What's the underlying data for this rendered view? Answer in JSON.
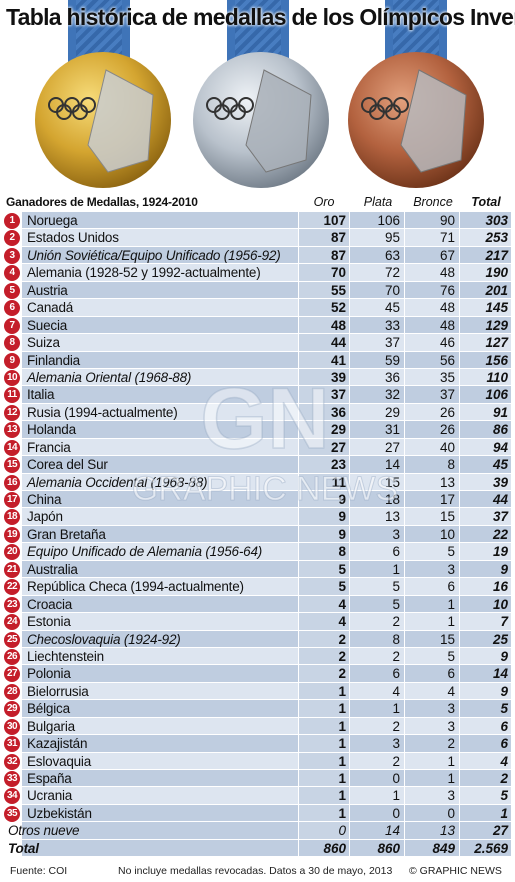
{
  "title": "Tabla histórica de medallas de los Olímpicos Invernales",
  "chart_data": {
    "type": "table",
    "header_label": "Ganadores de Medallas, 1924-2010",
    "columns": [
      "Oro",
      "Plata",
      "Bronce",
      "Total"
    ],
    "rows": [
      {
        "rank": "1",
        "country": "Noruega",
        "italic": false,
        "gold": "107",
        "silver": "106",
        "bronze": "90",
        "total": "303"
      },
      {
        "rank": "2",
        "country": "Estados Unidos",
        "italic": false,
        "gold": "87",
        "silver": "95",
        "bronze": "71",
        "total": "253"
      },
      {
        "rank": "3",
        "country": "Unión Soviética/Equipo Unificado (1956-92)",
        "italic": true,
        "gold": "87",
        "silver": "63",
        "bronze": "67",
        "total": "217"
      },
      {
        "rank": "4",
        "country": "Alemania (1928-52 y 1992-actualmente)",
        "italic": false,
        "gold": "70",
        "silver": "72",
        "bronze": "48",
        "total": "190"
      },
      {
        "rank": "5",
        "country": "Austria",
        "italic": false,
        "gold": "55",
        "silver": "70",
        "bronze": "76",
        "total": "201"
      },
      {
        "rank": "6",
        "country": "Canadá",
        "italic": false,
        "gold": "52",
        "silver": "45",
        "bronze": "48",
        "total": "145"
      },
      {
        "rank": "7",
        "country": "Suecia",
        "italic": false,
        "gold": "48",
        "silver": "33",
        "bronze": "48",
        "total": "129"
      },
      {
        "rank": "8",
        "country": "Suiza",
        "italic": false,
        "gold": "44",
        "silver": "37",
        "bronze": "46",
        "total": "127"
      },
      {
        "rank": "9",
        "country": "Finlandia",
        "italic": false,
        "gold": "41",
        "silver": "59",
        "bronze": "56",
        "total": "156"
      },
      {
        "rank": "10",
        "country": "Alemania Oriental (1968-88)",
        "italic": true,
        "gold": "39",
        "silver": "36",
        "bronze": "35",
        "total": "110"
      },
      {
        "rank": "11",
        "country": "Italia",
        "italic": false,
        "gold": "37",
        "silver": "32",
        "bronze": "37",
        "total": "106"
      },
      {
        "rank": "12",
        "country": "Rusia (1994-actualmente)",
        "italic": false,
        "gold": "36",
        "silver": "29",
        "bronze": "26",
        "total": "91"
      },
      {
        "rank": "13",
        "country": "Holanda",
        "italic": false,
        "gold": "29",
        "silver": "31",
        "bronze": "26",
        "total": "86"
      },
      {
        "rank": "14",
        "country": "Francia",
        "italic": false,
        "gold": "27",
        "silver": "27",
        "bronze": "40",
        "total": "94"
      },
      {
        "rank": "15",
        "country": "Corea del Sur",
        "italic": false,
        "gold": "23",
        "silver": "14",
        "bronze": "8",
        "total": "45"
      },
      {
        "rank": "16",
        "country": "Alemania Occidental (1968-88)",
        "italic": true,
        "gold": "11",
        "silver": "15",
        "bronze": "13",
        "total": "39"
      },
      {
        "rank": "17",
        "country": "China",
        "italic": false,
        "gold": "9",
        "silver": "18",
        "bronze": "17",
        "total": "44"
      },
      {
        "rank": "18",
        "country": "Japón",
        "italic": false,
        "gold": "9",
        "silver": "13",
        "bronze": "15",
        "total": "37"
      },
      {
        "rank": "19",
        "country": "Gran Bretaña",
        "italic": false,
        "gold": "9",
        "silver": "3",
        "bronze": "10",
        "total": "22"
      },
      {
        "rank": "20",
        "country": "Equipo Unificado de Alemania (1956-64)",
        "italic": true,
        "gold": "8",
        "silver": "6",
        "bronze": "5",
        "total": "19"
      },
      {
        "rank": "21",
        "country": "Australia",
        "italic": false,
        "gold": "5",
        "silver": "1",
        "bronze": "3",
        "total": "9"
      },
      {
        "rank": "22",
        "country": "República Checa  (1994-actualmente)",
        "italic": false,
        "gold": "5",
        "silver": "5",
        "bronze": "6",
        "total": "16"
      },
      {
        "rank": "23",
        "country": "Croacia",
        "italic": false,
        "gold": "4",
        "silver": "5",
        "bronze": "1",
        "total": "10"
      },
      {
        "rank": "24",
        "country": "Estonia",
        "italic": false,
        "gold": "4",
        "silver": "2",
        "bronze": "1",
        "total": "7"
      },
      {
        "rank": "25",
        "country": "Checoslovaquia (1924-92)",
        "italic": true,
        "gold": "2",
        "silver": "8",
        "bronze": "15",
        "total": "25"
      },
      {
        "rank": "26",
        "country": "Liechtenstein",
        "italic": false,
        "gold": "2",
        "silver": "2",
        "bronze": "5",
        "total": "9"
      },
      {
        "rank": "27",
        "country": "Polonia",
        "italic": false,
        "gold": "2",
        "silver": "6",
        "bronze": "6",
        "total": "14"
      },
      {
        "rank": "28",
        "country": "Bielorrusia",
        "italic": false,
        "gold": "1",
        "silver": "4",
        "bronze": "4",
        "total": "9"
      },
      {
        "rank": "29",
        "country": "Bélgica",
        "italic": false,
        "gold": "1",
        "silver": "1",
        "bronze": "3",
        "total": "5"
      },
      {
        "rank": "30",
        "country": "Bulgaria",
        "italic": false,
        "gold": "1",
        "silver": "2",
        "bronze": "3",
        "total": "6"
      },
      {
        "rank": "31",
        "country": "Kazajistán",
        "italic": false,
        "gold": "1",
        "silver": "3",
        "bronze": "2",
        "total": "6"
      },
      {
        "rank": "32",
        "country": "Eslovaquia",
        "italic": false,
        "gold": "1",
        "silver": "2",
        "bronze": "1",
        "total": "4"
      },
      {
        "rank": "33",
        "country": "España",
        "italic": false,
        "gold": "1",
        "silver": "0",
        "bronze": "1",
        "total": "2"
      },
      {
        "rank": "34",
        "country": "Ucrania",
        "italic": false,
        "gold": "1",
        "silver": "1",
        "bronze": "3",
        "total": "5"
      },
      {
        "rank": "35",
        "country": "Uzbekistán",
        "italic": false,
        "gold": "1",
        "silver": "0",
        "bronze": "0",
        "total": "1"
      }
    ],
    "others": {
      "label": "Otros nueve",
      "gold": "0",
      "silver": "14",
      "bronze": "13",
      "total": "27"
    },
    "totals": {
      "label": "Total",
      "gold": "860",
      "silver": "860",
      "bronze": "849",
      "total": "2.569"
    }
  },
  "footer": {
    "source": "Fuente: COI",
    "note": "No incluye medallas revocadas.  Datos a 30 de mayo, 2013",
    "credit": "© GRAPHIC NEWS"
  },
  "watermark": {
    "logo": "GN",
    "text": "GRAPHIC NEWS"
  },
  "colors": {
    "badge": "#c41e2a",
    "row_dark": "#bfcde0",
    "row_light": "#dde5f0",
    "ribbon": "#3f74b8",
    "gold": "#d4a530",
    "silver": "#b9c2cc",
    "bronze": "#b3623f"
  },
  "icons": [
    "gold-medal-icon",
    "silver-medal-icon",
    "bronze-medal-icon",
    "olympic-rings-icon"
  ]
}
